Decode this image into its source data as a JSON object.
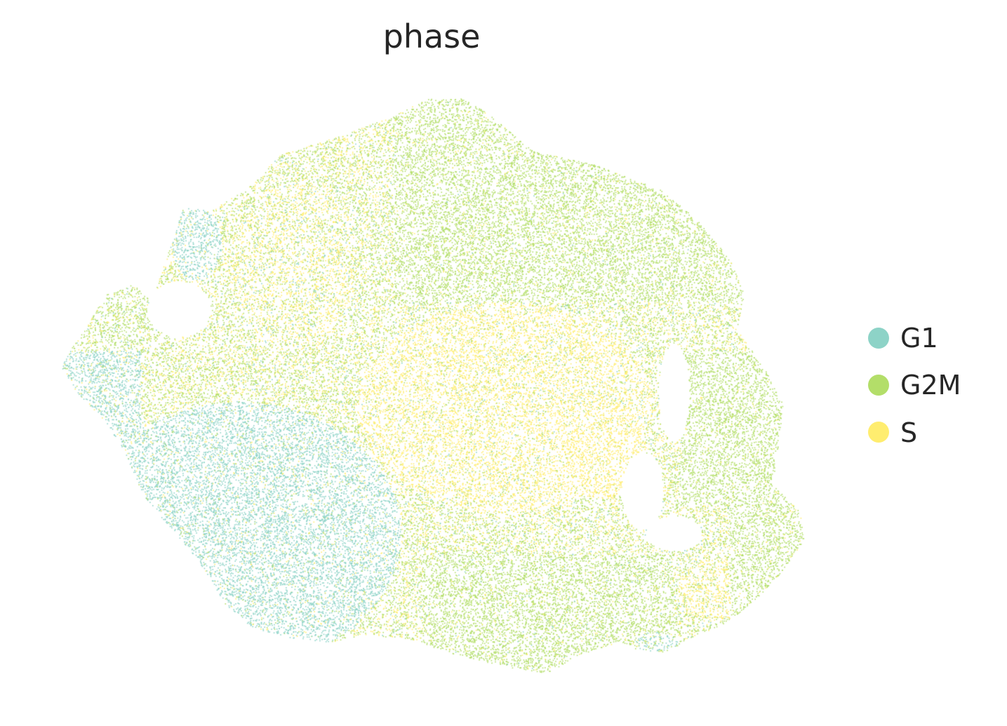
{
  "chart_data": {
    "type": "scatter",
    "title": "phase",
    "xlabel": "",
    "ylabel": "",
    "axes_visible": false,
    "grid": false,
    "legend_position": "right",
    "series": [
      {
        "name": "G1",
        "color": "#8dd3c7"
      },
      {
        "name": "G2M",
        "color": "#b3de69"
      },
      {
        "name": "S",
        "color": "#ffed6f"
      }
    ]
  }
}
